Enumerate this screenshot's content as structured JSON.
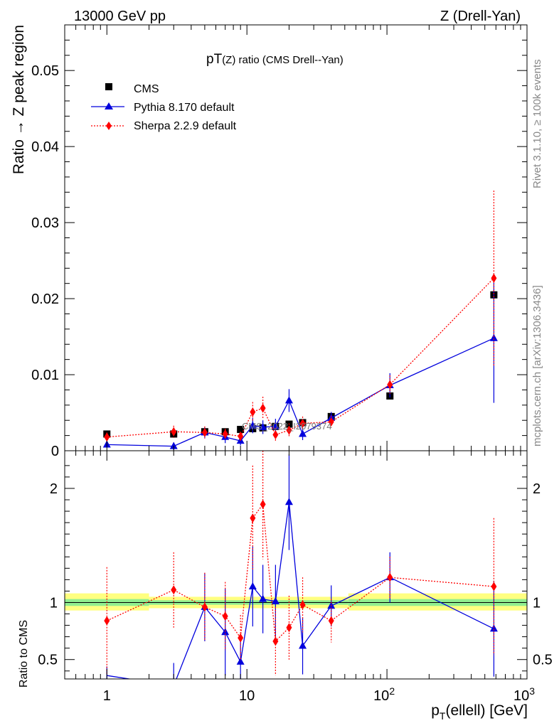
{
  "header": {
    "left": "13000 GeV pp",
    "right": "Z (Drell-Yan)"
  },
  "side_labels": {
    "rivet": "Rivet 3.1.10, ≥ 100k events",
    "mcplots": "mcplots.cern.ch [arXiv:1306.3436]"
  },
  "chart_data": [
    {
      "type": "scatter",
      "panel": "main",
      "title": "pT(Z) ratio (CMS Drell--Yan)",
      "title_main": "pT",
      "title_sub": "(Z) ratio (CMS Drell--Yan)",
      "ylabel": "Ratio → Z peak region",
      "xscale": "log",
      "xlim": [
        0.5,
        1000
      ],
      "ylim": [
        0,
        0.056
      ],
      "yticks": [
        0,
        0.01,
        0.02,
        0.03,
        0.04,
        0.05
      ],
      "ytick_labels": [
        "0",
        "0.01",
        "0.02",
        "0.03",
        "0.04",
        "0.05"
      ],
      "watermark": "CMS_2022_I2079374",
      "legend_position": "top-left",
      "legend": [
        "CMS",
        "Pythia 8.170 default",
        "Sherpa 2.2.9 default"
      ],
      "series": [
        {
          "name": "CMS",
          "color": "#000000",
          "marker": "square",
          "x": [
            1,
            3,
            5,
            7,
            9,
            11,
            13,
            16,
            20,
            25,
            40,
            105,
            580
          ],
          "y": [
            0.0022,
            0.0022,
            0.0025,
            0.0025,
            0.0028,
            0.0029,
            0.003,
            0.0032,
            0.0035,
            0.0037,
            0.0045,
            0.0072,
            0.0205
          ],
          "err": [
            0.0001,
            0.0001,
            0.0001,
            0.0001,
            0.0001,
            0.0001,
            0.0001,
            0.0001,
            0.0001,
            0.0001,
            0.0002,
            0.0003,
            0.0006
          ]
        },
        {
          "name": "Pythia 8.170 default",
          "color": "#0000dd",
          "marker": "triangle",
          "x": [
            1,
            3,
            5,
            7,
            9,
            11,
            13,
            16,
            20,
            25,
            40,
            105,
            580
          ],
          "y": [
            0.0008,
            0.0006,
            0.0024,
            0.0018,
            0.0013,
            0.0033,
            0.0031,
            0.0032,
            0.0066,
            0.0022,
            0.0043,
            0.0086,
            0.0148
          ],
          "err": [
            0.0002,
            0.0005,
            0.0007,
            0.0008,
            0.0006,
            0.001,
            0.0009,
            0.001,
            0.0015,
            0.0008,
            0.0008,
            0.0016,
            0.0085
          ]
        },
        {
          "name": "Sherpa 2.2.9 default",
          "color": "#ff0000",
          "marker": "diamond",
          "x": [
            1,
            3,
            5,
            7,
            9,
            11,
            13,
            16,
            20,
            25,
            40,
            105,
            580
          ],
          "y": [
            0.0018,
            0.0025,
            0.0024,
            0.0022,
            0.0019,
            0.0051,
            0.0056,
            0.0021,
            0.0027,
            0.0036,
            0.0038,
            0.0087,
            0.0227
          ],
          "err": [
            0.0006,
            0.0008,
            0.0008,
            0.0007,
            0.0006,
            0.0013,
            0.0015,
            0.0009,
            0.0009,
            0.0009,
            0.0008,
            0.0012,
            0.0115
          ]
        }
      ]
    },
    {
      "type": "scatter",
      "panel": "ratio",
      "ylabel": "Ratio to CMS",
      "xlabel": "p_T(ellell) [GeV]",
      "xlabel_p": "p",
      "xlabel_sub": "T",
      "xlabel_rest": "(ellell) [GeV]",
      "xscale": "log",
      "xlim": [
        0.5,
        1000
      ],
      "ylim": [
        0.33,
        2.33
      ],
      "yticks": [
        0.5,
        1,
        2
      ],
      "ytick_labels": [
        "0.5",
        "1",
        "2"
      ],
      "xtick_labels": [
        {
          "value": 1,
          "base": "1",
          "exp": ""
        },
        {
          "value": 10,
          "base": "10",
          "exp": ""
        },
        {
          "value": 100,
          "base": "10",
          "exp": "2"
        },
        {
          "value": 1000,
          "base": "10",
          "exp": "3"
        }
      ],
      "bands": [
        {
          "x0": 0.5,
          "x1": 2,
          "green": [
            0.97,
            1.03
          ],
          "yellow": [
            0.93,
            1.08
          ]
        },
        {
          "x0": 2,
          "x1": 53,
          "green": [
            0.98,
            1.02
          ],
          "yellow": [
            0.95,
            1.05
          ]
        },
        {
          "x0": 53,
          "x1": 1000,
          "green": [
            0.97,
            1.03
          ],
          "yellow": [
            0.93,
            1.08
          ]
        }
      ],
      "series": [
        {
          "name": "Pythia 8.170 default",
          "color": "#0000dd",
          "marker": "triangle",
          "x": [
            1,
            3,
            5,
            7,
            9,
            11,
            13,
            16,
            20,
            25,
            40,
            105,
            580
          ],
          "y": [
            0.36,
            0.27,
            0.96,
            0.74,
            0.48,
            1.14,
            1.03,
            1.01,
            1.88,
            0.62,
            0.97,
            1.22,
            0.77
          ],
          "err": [
            0.08,
            0.2,
            0.3,
            0.38,
            0.2,
            0.35,
            0.3,
            0.32,
            0.42,
            0.25,
            0.18,
            0.22,
            0.42
          ],
          "draw_marker": [
            false,
            false,
            true,
            true,
            true,
            true,
            true,
            true,
            true,
            true,
            true,
            true,
            true
          ]
        },
        {
          "name": "Sherpa 2.2.9 default",
          "color": "#ff0000",
          "marker": "diamond",
          "x": [
            1,
            3,
            5,
            7,
            9,
            11,
            13,
            16,
            20,
            25,
            40,
            105,
            580
          ],
          "y": [
            0.84,
            1.11,
            0.96,
            0.88,
            0.69,
            1.74,
            1.86,
            0.66,
            0.78,
            0.98,
            0.84,
            1.22,
            1.14
          ],
          "err": [
            0.47,
            0.33,
            0.3,
            0.3,
            0.2,
            0.46,
            0.48,
            0.3,
            0.28,
            0.24,
            0.19,
            0.18,
            0.6
          ]
        }
      ]
    }
  ]
}
